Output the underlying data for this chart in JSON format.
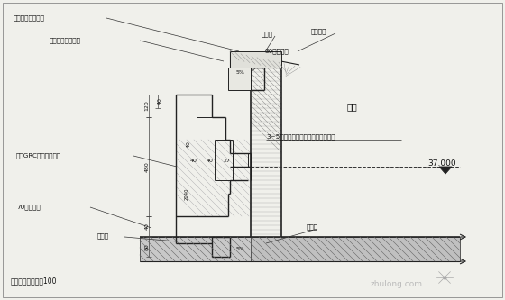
{
  "bg_color": "#f0f0eb",
  "line_color": "#222222",
  "labels": {
    "yanbianban_jiagu": "岩棉板专用锚固件",
    "zhuangshi_chaoxian": "装饰檐线轻钢支架",
    "grc_line": "成品GRC外墙装饰檐线",
    "yanbianban_70": "70厚岩棉板",
    "dishui": "滴水线",
    "fujia_wangjiabu": "附加网格布转角各100",
    "chuangfu_kuang_top": "窗附框",
    "chuangfu_kuang_bot": "窗附框",
    "mianzhuan_chuangtai": "面砖窗台",
    "cuju_30": "30厚聚苯板",
    "cantin": "餐厅",
    "layer_35": "3~5厚抹平面层砂浆复合玻纤网格布",
    "elevation": "37.000",
    "pct_top": "5%",
    "pct_bottom": "5%"
  },
  "dims": {
    "d120": "120",
    "d40a": "40",
    "d480": "480",
    "d40b": "40",
    "d80": "80",
    "d40c": "40",
    "d40d": "40",
    "d27": "27",
    "d40e": "40",
    "d2040": "2040"
  },
  "watermark": "zhulong.com",
  "fs_label": 5.2,
  "fs_dim": 4.5,
  "fs_elev": 6.5,
  "fs_room": 7.0,
  "fs_wm": 6.5
}
